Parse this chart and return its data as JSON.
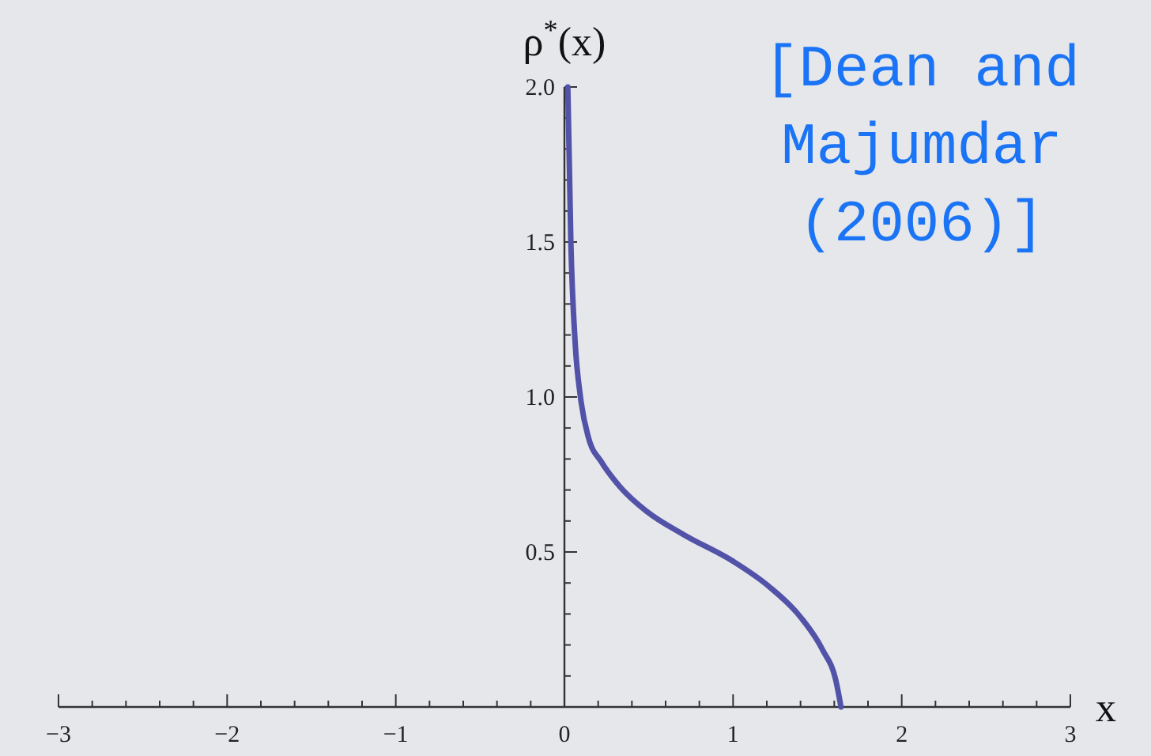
{
  "chart_data": {
    "type": "line",
    "xlabel": "x",
    "ylabel": "ρ$^{*}$(x)",
    "annotations": [
      "[Dean and\nMajumdar\n(2006)]"
    ],
    "xlim": [
      -3,
      3
    ],
    "ylim": [
      0,
      2
    ],
    "xticks": [
      {
        "value": -3,
        "label": "−3"
      },
      {
        "value": -2.8,
        "label": null
      },
      {
        "value": -2.6,
        "label": null
      },
      {
        "value": -2.4,
        "label": null
      },
      {
        "value": -2.2,
        "label": null
      },
      {
        "value": -2,
        "label": "−2"
      },
      {
        "value": -1.8,
        "label": null
      },
      {
        "value": -1.6,
        "label": null
      },
      {
        "value": -1.4,
        "label": null
      },
      {
        "value": -1.2,
        "label": null
      },
      {
        "value": -1,
        "label": "−1"
      },
      {
        "value": -0.8,
        "label": null
      },
      {
        "value": -0.6,
        "label": null
      },
      {
        "value": -0.4,
        "label": null
      },
      {
        "value": -0.2,
        "label": null
      },
      0,
      {
        "value": 0.2,
        "label": null
      },
      {
        "value": 0.4,
        "label": null
      },
      {
        "value": 0.6,
        "label": null
      },
      {
        "value": 0.8,
        "label": null
      },
      1,
      {
        "value": 1.2,
        "label": null
      },
      {
        "value": 1.4,
        "label": null
      },
      {
        "value": 1.6,
        "label": null
      },
      {
        "value": 1.8,
        "label": null
      },
      2,
      {
        "value": 2.2,
        "label": null
      },
      {
        "value": 2.4,
        "label": null
      },
      {
        "value": 2.6,
        "label": null
      },
      {
        "value": 2.8,
        "label": null
      },
      3
    ],
    "yticks": [
      {
        "value": 0.1,
        "label": null
      },
      {
        "value": 0.2,
        "label": null
      },
      {
        "value": 0.3,
        "label": null
      },
      {
        "value": 0.4,
        "label": null
      },
      {
        "value": 0.5,
        "label": "0.5"
      },
      {
        "value": 0.6,
        "label": null
      },
      {
        "value": 0.7,
        "label": null
      },
      {
        "value": 0.8,
        "label": null
      },
      {
        "value": 0.9,
        "label": null
      },
      {
        "value": 1,
        "label": "1.0"
      },
      {
        "value": 1.1,
        "label": null
      },
      {
        "value": 1.2,
        "label": null
      },
      {
        "value": 1.3,
        "label": null
      },
      {
        "value": 1.4,
        "label": null
      },
      {
        "value": 1.5,
        "label": "1.5"
      },
      {
        "value": 1.6,
        "label": null
      },
      {
        "value": 1.7,
        "label": null
      },
      {
        "value": 1.8,
        "label": null
      },
      {
        "value": 1.9,
        "label": null
      },
      {
        "value": 2,
        "label": "2.0"
      }
    ],
    "grid": false,
    "series": [
      {
        "color": "#5252a8",
        "x": [
          0.02,
          0.038,
          0.063,
          0.095,
          0.142,
          0.22,
          0.33,
          0.49,
          0.71,
          1.0,
          1.21,
          1.4,
          1.53,
          1.61,
          1.64
        ],
        "values": [
          2.0,
          1.5,
          1.18,
          1.0,
          0.87,
          0.79,
          0.71,
          0.63,
          0.555,
          0.47,
          0.39,
          0.29,
          0.185,
          0.084,
          0
        ]
      }
    ]
  }
}
